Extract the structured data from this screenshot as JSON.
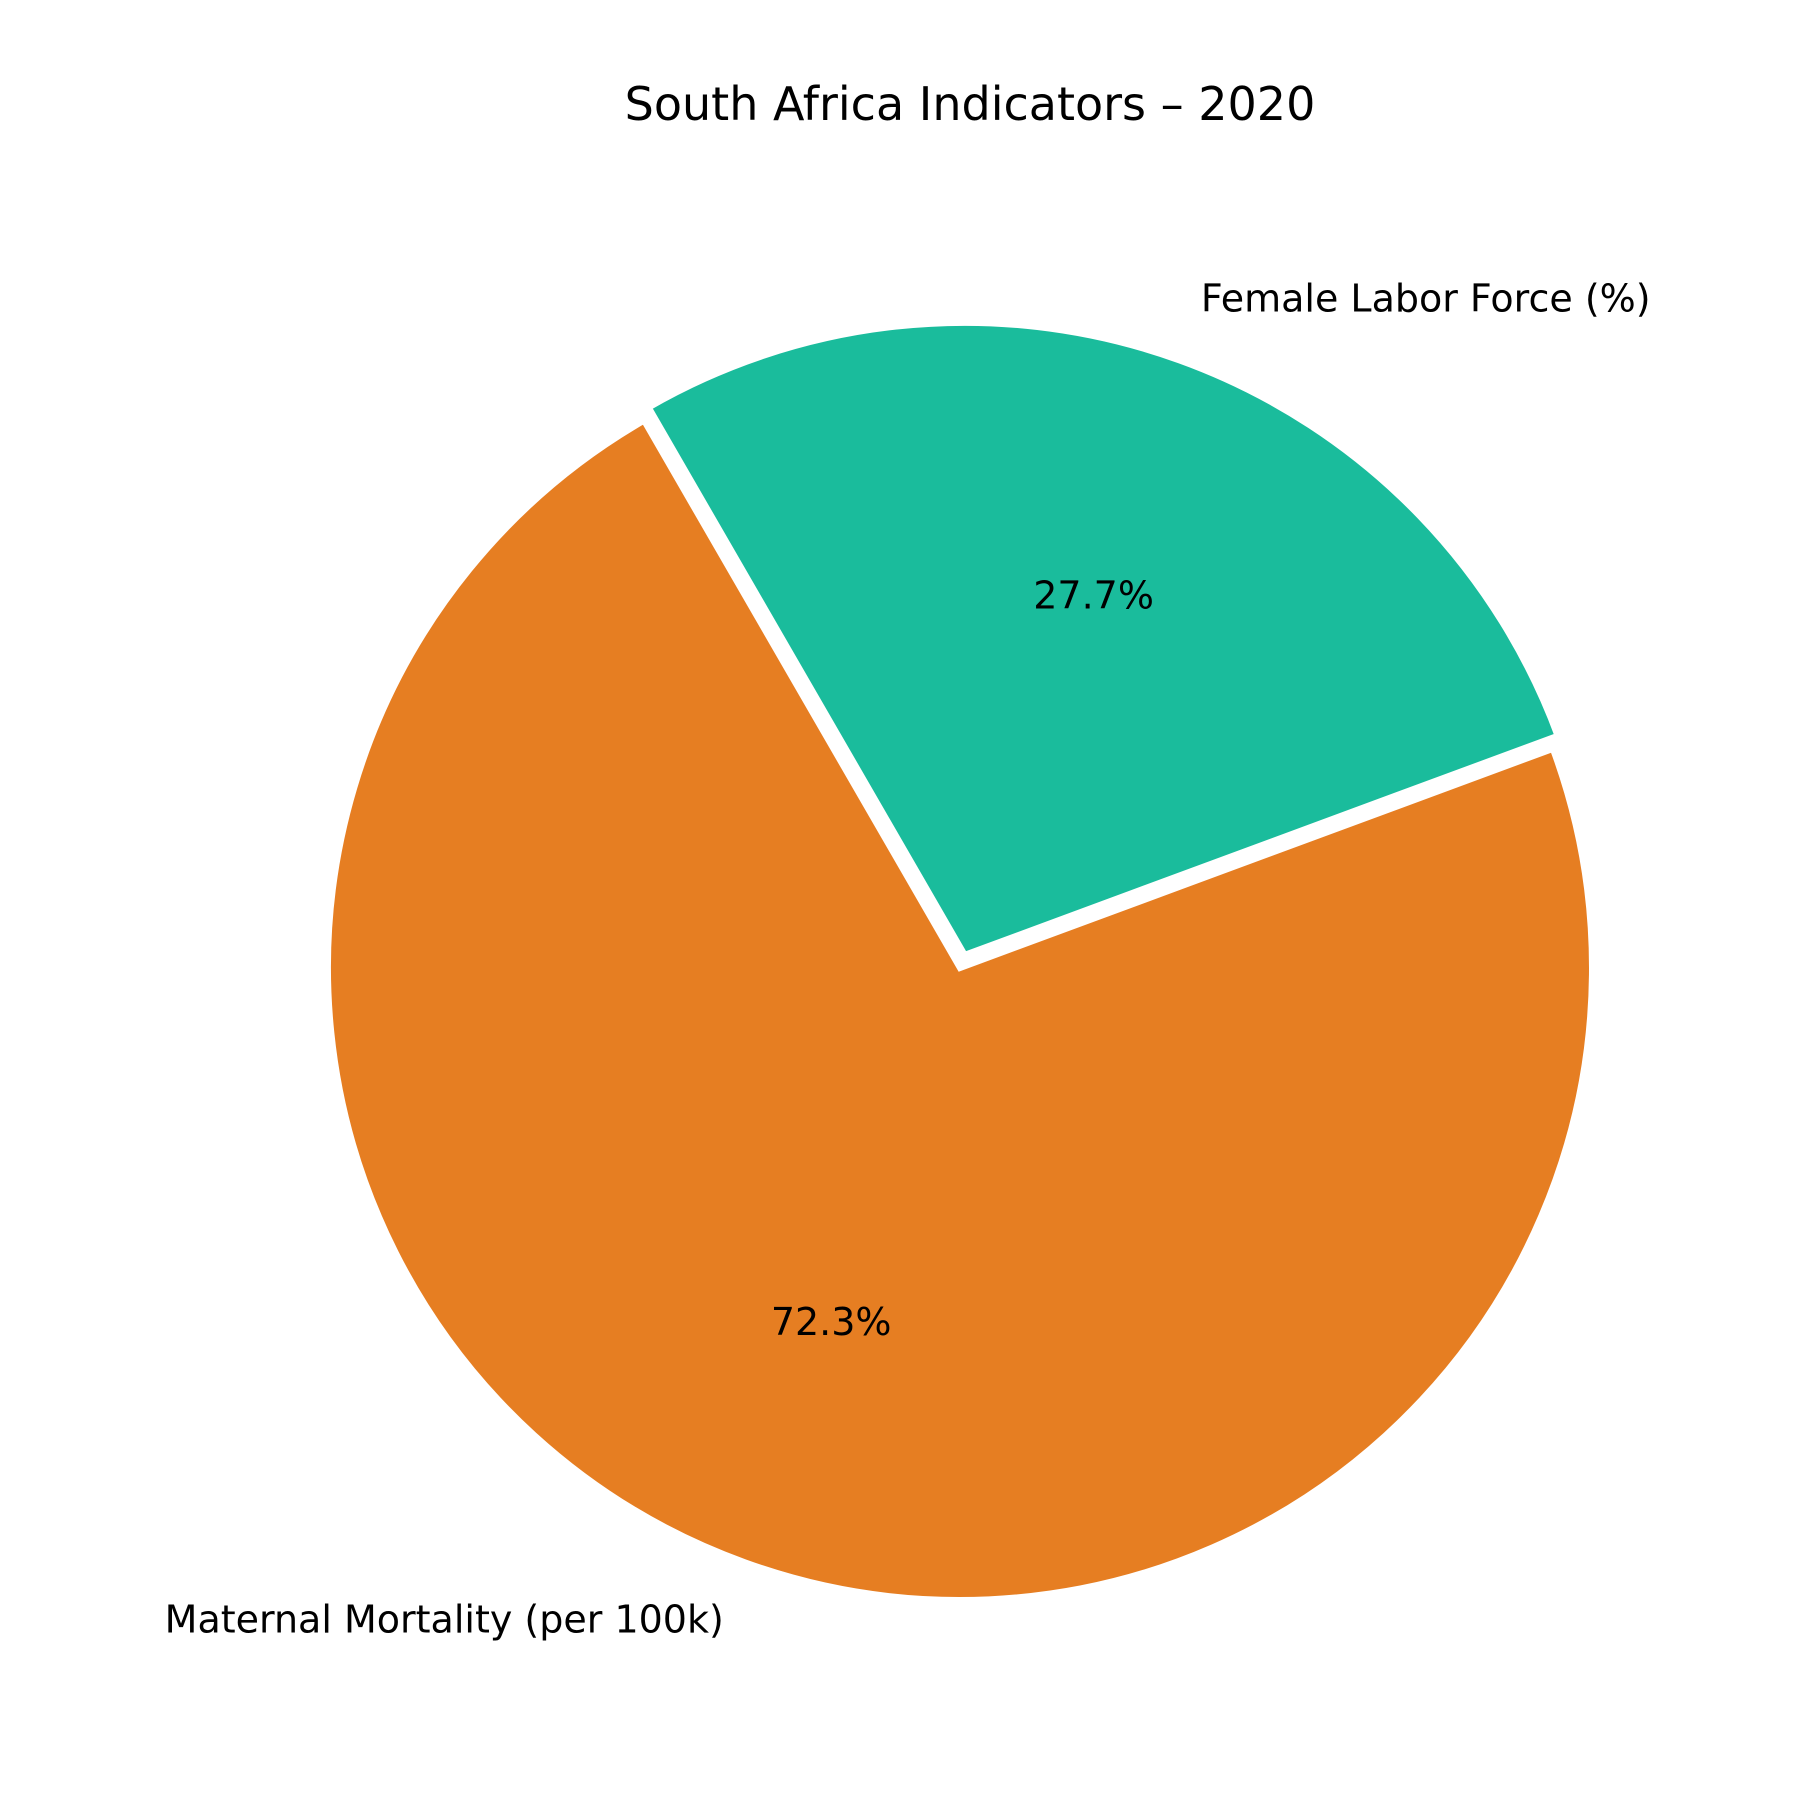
{
  "chart_data": {
    "type": "pie",
    "title": "South Africa Indicators – 2020",
    "slices": [
      {
        "label": "Female Labor Force (%)",
        "percent": 27.7,
        "percent_label": "27.7%",
        "color": "#1ABC9C",
        "exploded": true
      },
      {
        "label": "Maternal Mortality (per 100k)",
        "percent": 72.3,
        "percent_label": "72.3%",
        "color": "#E67E22",
        "exploded": false
      }
    ]
  }
}
